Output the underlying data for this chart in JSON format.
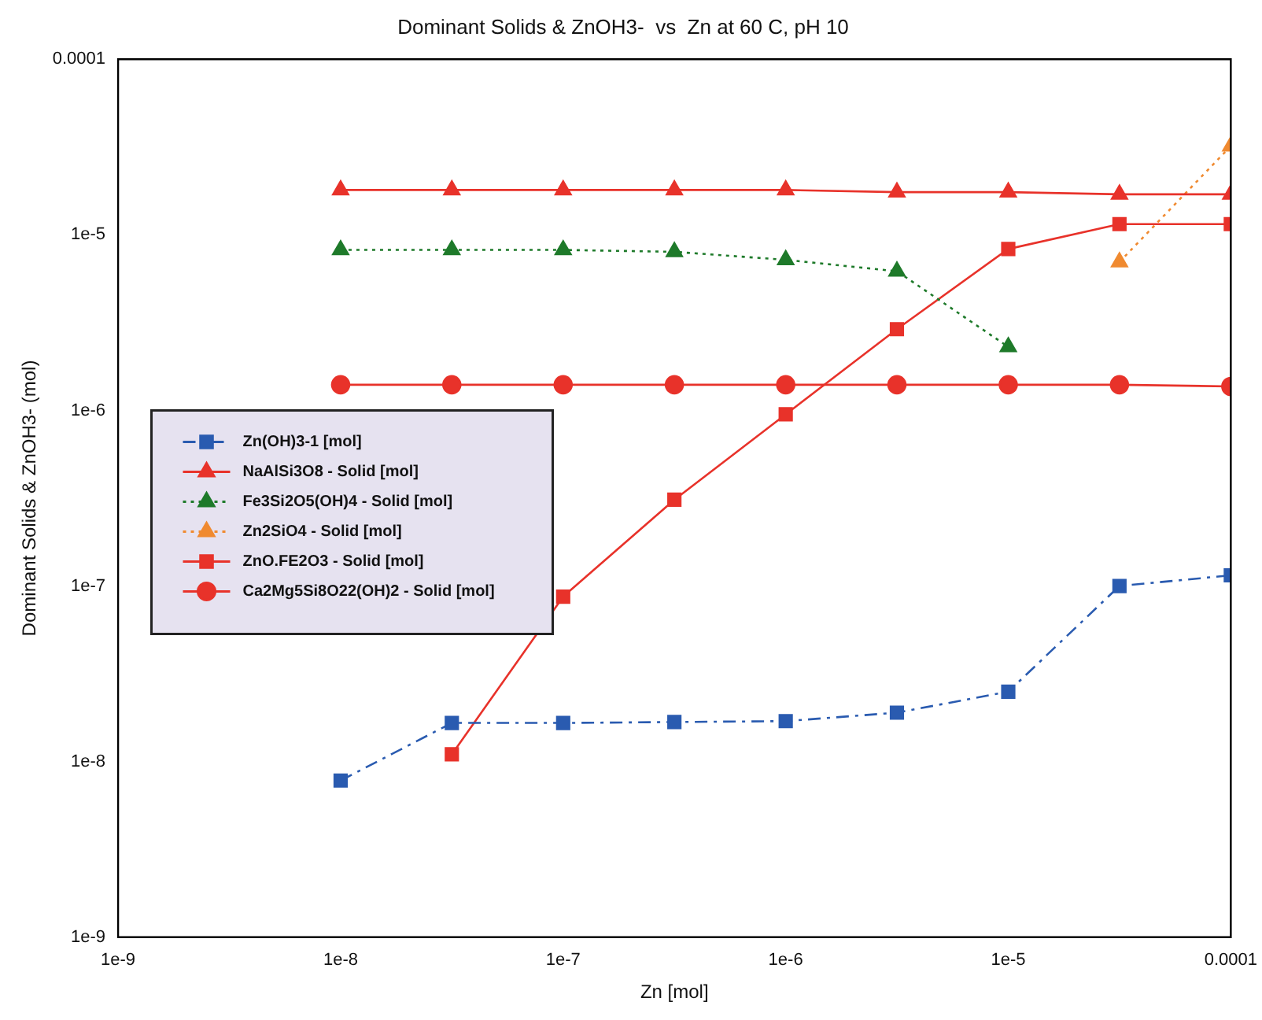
{
  "chart_data": {
    "type": "line",
    "title": "Dominant Solids & ZnOH3-  vs  Zn at 60 C, pH 10",
    "xlabel": "Zn [mol]",
    "ylabel": "Dominant Solids & ZnOH3- (mol)",
    "log": "xy",
    "grid": false,
    "legend": "left",
    "x": [
      1e-08,
      3.16e-08,
      1e-07,
      3.16e-07,
      1e-06,
      3.16e-06,
      1e-05,
      3.16e-05,
      0.0001
    ],
    "xlim": [
      1e-09,
      0.0001
    ],
    "xticks": [
      {
        "value": 1e-09,
        "label": "1e-9"
      },
      {
        "value": 1e-08,
        "label": "1e-8"
      },
      {
        "value": 1e-07,
        "label": "1e-7"
      },
      {
        "value": 1e-06,
        "label": "1e-6"
      },
      {
        "value": 1e-05,
        "label": "1e-5"
      },
      {
        "value": 0.0001,
        "label": "0.0001"
      }
    ],
    "ylim": [
      1e-09,
      0.0001
    ],
    "yticks": [
      {
        "value": 1e-09,
        "label": "1e-9"
      },
      {
        "value": 1e-08,
        "label": "1e-8"
      },
      {
        "value": 1e-07,
        "label": "1e-7"
      },
      {
        "value": 1e-06,
        "label": "1e-6"
      },
      {
        "value": 1e-05,
        "label": "1e-5"
      },
      {
        "value": 0.0001,
        "label": "0.0001"
      }
    ],
    "series": [
      {
        "name": "Zn(OH)3-1 [mol]",
        "color": "#2a5bb0",
        "marker": "square",
        "line_style": "dashed",
        "values": [
          7.8e-09,
          1.66e-08,
          1.66e-08,
          1.68e-08,
          1.7e-08,
          1.9e-08,
          2.5e-08,
          1e-07,
          1.15e-07
        ]
      },
      {
        "name": "NaAlSi3O8 - Solid [mol]",
        "color": "#e8322a",
        "marker": "triangle",
        "line_style": "solid",
        "values": [
          1.8e-05,
          1.8e-05,
          1.8e-05,
          1.8e-05,
          1.8e-05,
          1.75e-05,
          1.75e-05,
          1.7e-05,
          1.7e-05
        ]
      },
      {
        "name": "Fe3Si2O5(OH)4 - Solid [mol]",
        "color": "#1e7a2a",
        "marker": "triangle",
        "line_style": "dotted",
        "values": [
          8.2e-06,
          8.2e-06,
          8.2e-06,
          8e-06,
          7.2e-06,
          6.2e-06,
          2.3e-06,
          null,
          null
        ]
      },
      {
        "name": "Zn2SiO4 - Solid [mol]",
        "color": "#f08a30",
        "marker": "triangle",
        "line_style": "dotted",
        "values": [
          null,
          null,
          null,
          null,
          null,
          null,
          null,
          7e-06,
          3.2e-05
        ]
      },
      {
        "name": "ZnO.FE2O3 - Solid [mol]",
        "color": "#e8322a",
        "marker": "square",
        "line_style": "solid",
        "values": [
          null,
          1.1e-08,
          8.7e-08,
          3.1e-07,
          9.5e-07,
          2.9e-06,
          8.3e-06,
          1.15e-05,
          1.15e-05
        ]
      },
      {
        "name": "Ca2Mg5Si8O22(OH)2 - Solid [mol]",
        "color": "#e8322a",
        "marker": "circle",
        "line_style": "solid",
        "values": [
          1.4e-06,
          1.4e-06,
          1.4e-06,
          1.4e-06,
          1.4e-06,
          1.4e-06,
          1.4e-06,
          1.4e-06,
          1.37e-06
        ]
      }
    ]
  }
}
